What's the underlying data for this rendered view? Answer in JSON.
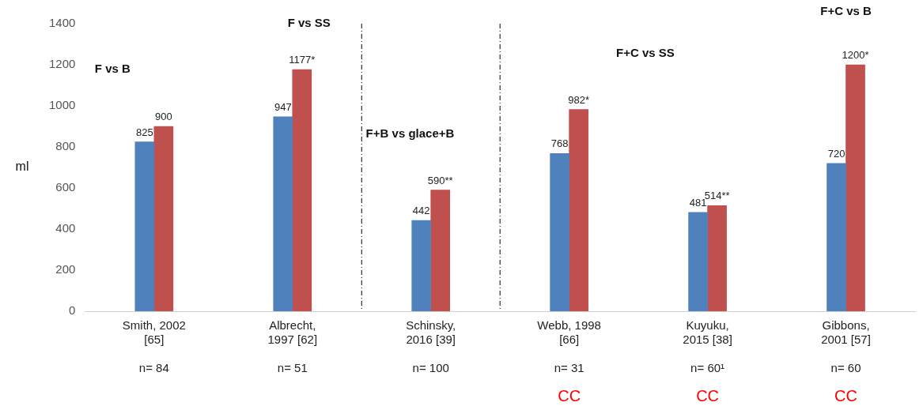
{
  "chart_data": {
    "type": "bar",
    "ylabel": "ml",
    "categories": [
      "Smith, 2002\n[65]\n\nn= 84",
      "Albrecht,\n1997 [62]\n\nn= 51",
      "Schinsky,\n2016 [39]\n\nn= 100",
      "Webb, 1998\n[66]\n\nn= 31",
      "Kuyuku,\n2015 [38]\n\nn= 60¹",
      "Gibbons,\n2001 [57]\n\nn= 60"
    ],
    "series": [
      {
        "color": "#4f81bd",
        "values": [
          825,
          947,
          442,
          768,
          481,
          720
        ],
        "value_labels": [
          "825",
          "947",
          "442",
          "768",
          "481",
          "720"
        ]
      },
      {
        "color": "#c0504d",
        "values": [
          900,
          1177,
          590,
          982,
          514,
          1200
        ],
        "value_labels": [
          "900",
          "1177*",
          "590**",
          "982*",
          "514**",
          "1200*"
        ]
      }
    ],
    "ylim": [
      0,
      1400
    ],
    "yticks": [
      0,
      200,
      400,
      600,
      800,
      1000,
      1200,
      1400
    ],
    "grid": false,
    "legend": false,
    "annotations": [
      "F vs B",
      "F vs SS",
      "F+B vs glace+B",
      "F+C vs SS",
      "F+C vs B",
      "CC",
      "CC",
      "CC"
    ]
  }
}
